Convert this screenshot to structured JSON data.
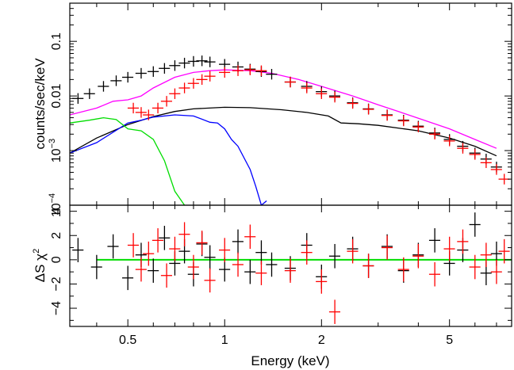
{
  "chart_data": [
    {
      "panel": "spectrum",
      "type": "scatter",
      "xscale": "log",
      "yscale": "log",
      "xlim": [
        0.33,
        7.8
      ],
      "ylim": [
        0.0001,
        0.5
      ],
      "ylabel": "counts/sec/keV",
      "yticks": [
        {
          "value": 0.0001,
          "base": "10",
          "exp": "−4"
        },
        {
          "value": 0.001,
          "base": "10",
          "exp": "−3"
        },
        {
          "value": 0.01,
          "label": "0.01"
        },
        {
          "value": 0.1,
          "label": "0.1"
        }
      ],
      "series": [
        {
          "color": "#000000",
          "kind": "data",
          "x": [
            0.35,
            0.38,
            0.42,
            0.46,
            0.5,
            0.55,
            0.6,
            0.65,
            0.7,
            0.75,
            0.8,
            0.85,
            0.9,
            1.0,
            1.1,
            1.2,
            1.3,
            1.4,
            1.6,
            1.8,
            2.0,
            2.2,
            2.5,
            2.8,
            3.2,
            3.6,
            4.0,
            4.5,
            5.0,
            5.5,
            6.0,
            6.5,
            7.0
          ],
          "y": [
            0.009,
            0.011,
            0.015,
            0.019,
            0.022,
            0.026,
            0.028,
            0.032,
            0.036,
            0.04,
            0.043,
            0.044,
            0.042,
            0.038,
            0.034,
            0.031,
            0.028,
            0.025,
            0.018,
            0.015,
            0.012,
            0.01,
            0.0075,
            0.0058,
            0.0045,
            0.0036,
            0.0028,
            0.0021,
            0.0016,
            0.0012,
            0.0009,
            0.0007,
            0.0005
          ]
        },
        {
          "color": "#ff0000",
          "kind": "data",
          "x": [
            0.52,
            0.55,
            0.58,
            0.62,
            0.66,
            0.7,
            0.75,
            0.8,
            0.85,
            0.9,
            1.0,
            1.1,
            1.2,
            1.3,
            1.6,
            1.8,
            2.0,
            2.2,
            2.5,
            2.8,
            3.2,
            3.6,
            4.0,
            4.5,
            5.0,
            5.5,
            6.0,
            6.5,
            7.0,
            7.4
          ],
          "y": [
            0.006,
            0.005,
            0.0045,
            0.006,
            0.008,
            0.011,
            0.014,
            0.017,
            0.02,
            0.023,
            0.027,
            0.029,
            0.03,
            0.029,
            0.018,
            0.014,
            0.011,
            0.0095,
            0.0073,
            0.0057,
            0.0044,
            0.0035,
            0.0027,
            0.002,
            0.0015,
            0.0011,
            0.00085,
            0.0006,
            0.00045,
            0.0003
          ]
        },
        {
          "color": "#ff00ff",
          "kind": "model",
          "x": [
            0.33,
            0.4,
            0.45,
            0.5,
            0.55,
            0.6,
            0.7,
            0.8,
            0.9,
            1.0,
            1.2,
            1.4,
            1.7,
            2.0,
            2.5,
            3.0,
            3.5,
            4.0,
            5.0,
            6.0,
            7.0
          ],
          "y": [
            0.0045,
            0.006,
            0.008,
            0.0085,
            0.01,
            0.014,
            0.022,
            0.027,
            0.029,
            0.03,
            0.029,
            0.026,
            0.02,
            0.015,
            0.01,
            0.0069,
            0.0051,
            0.0039,
            0.0025,
            0.0016,
            0.0011
          ]
        },
        {
          "color": "#000000",
          "kind": "model",
          "x": [
            0.33,
            0.4,
            0.5,
            0.6,
            0.7,
            0.8,
            1.0,
            1.2,
            1.5,
            1.8,
            2.1,
            2.3,
            2.6,
            3.0,
            4.0,
            5.0,
            6.0,
            7.0
          ],
          "y": [
            0.0009,
            0.0017,
            0.003,
            0.0042,
            0.0052,
            0.0058,
            0.0062,
            0.0061,
            0.0056,
            0.005,
            0.0043,
            0.0032,
            0.0031,
            0.0029,
            0.0023,
            0.0017,
            0.0012,
            0.0008
          ]
        },
        {
          "color": "#0000ff",
          "kind": "model",
          "x": [
            0.33,
            0.4,
            0.5,
            0.55,
            0.6,
            0.7,
            0.8,
            0.9,
            0.95,
            1.0,
            1.05,
            1.1,
            1.2,
            1.25,
            1.3,
            1.35
          ],
          "y": [
            0.0009,
            0.0014,
            0.0032,
            0.0036,
            0.0041,
            0.0045,
            0.0043,
            0.0033,
            0.0032,
            0.0025,
            0.0016,
            0.0012,
            0.00045,
            0.00022,
            0.0001,
            0.00012
          ]
        },
        {
          "color": "#00dd00",
          "kind": "model",
          "x": [
            0.33,
            0.38,
            0.42,
            0.46,
            0.5,
            0.55,
            0.6,
            0.65,
            0.7,
            0.75
          ],
          "y": [
            0.0032,
            0.0036,
            0.004,
            0.0037,
            0.0025,
            0.0023,
            0.0016,
            0.00065,
            0.00018,
            0.0001
          ]
        }
      ]
    },
    {
      "panel": "residuals",
      "type": "scatter",
      "xscale": "log",
      "xlim": [
        0.33,
        7.8
      ],
      "ylim": [
        -5.5,
        4.5
      ],
      "ylabel_main": "ΔS χ",
      "ylabel_sup": "2",
      "xlabel": "Energy (keV)",
      "xticks": [
        {
          "value": 0.5,
          "label": "0.5"
        },
        {
          "value": 1,
          "label": "1"
        },
        {
          "value": 2,
          "label": "2"
        },
        {
          "value": 5,
          "label": "5"
        }
      ],
      "yticks": [
        {
          "value": -4,
          "label": "−4"
        },
        {
          "value": -2,
          "label": "−2"
        },
        {
          "value": 0,
          "label": "0"
        },
        {
          "value": 2,
          "label": "2"
        },
        {
          "value": 4,
          "label": "4"
        }
      ],
      "zero_line_color": "#00dd00",
      "series": [
        {
          "color": "#000000",
          "x": [
            0.35,
            0.4,
            0.45,
            0.5,
            0.55,
            0.6,
            0.65,
            0.7,
            0.75,
            0.8,
            0.85,
            0.9,
            1.0,
            1.1,
            1.2,
            1.3,
            1.4,
            1.6,
            1.8,
            2.0,
            2.2,
            2.5,
            2.8,
            3.2,
            3.6,
            4.0,
            4.5,
            5.0,
            5.5,
            6.0,
            6.5,
            7.0
          ],
          "y": [
            0.8,
            -0.6,
            1.1,
            -1.5,
            0.4,
            -0.9,
            1.8,
            -0.3,
            0.7,
            -1.2,
            1.3,
            0.2,
            -0.8,
            1.5,
            -1.0,
            0.6,
            -0.4,
            -0.7,
            1.2,
            -1.4,
            0.3,
            0.9,
            -0.5,
            1.1,
            -0.9,
            0.4,
            1.6,
            -0.3,
            0.8,
            2.9,
            -1.1,
            0.5
          ]
        },
        {
          "color": "#ff0000",
          "x": [
            0.52,
            0.55,
            0.58,
            0.62,
            0.66,
            0.7,
            0.75,
            0.8,
            0.85,
            0.9,
            1.0,
            1.1,
            1.2,
            1.3,
            1.6,
            1.8,
            2.0,
            2.2,
            2.5,
            2.8,
            3.2,
            3.6,
            4.0,
            4.5,
            5.0,
            5.5,
            6.0,
            6.5,
            7.0,
            7.4
          ],
          "y": [
            1.2,
            -0.8,
            0.5,
            1.6,
            -1.3,
            0.9,
            2.1,
            -0.6,
            1.4,
            -1.7,
            0.8,
            -0.4,
            1.9,
            -1.1,
            -0.9,
            0.6,
            -1.8,
            -4.3,
            0.7,
            -0.5,
            1.0,
            -0.8,
            0.3,
            -1.2,
            0.9,
            1.5,
            -0.6,
            0.4,
            -1.0,
            0.7
          ]
        }
      ]
    }
  ]
}
